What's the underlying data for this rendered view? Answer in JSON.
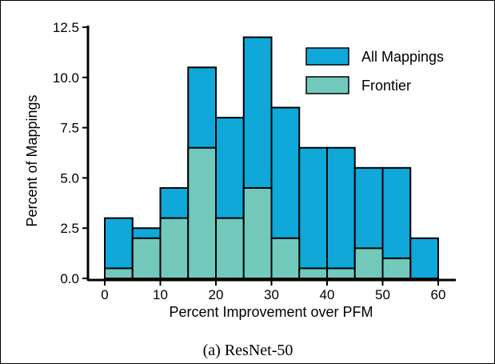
{
  "chart_data": {
    "type": "bar",
    "histogram": true,
    "bin_edges": [
      0,
      5,
      10,
      15,
      20,
      25,
      30,
      35,
      40,
      45,
      50,
      55,
      60
    ],
    "series": [
      {
        "name": "All Mappings",
        "color": "#0fa8d8",
        "values": [
          3.0,
          2.5,
          4.5,
          10.5,
          8.0,
          12.0,
          8.5,
          6.5,
          6.5,
          5.5,
          5.5,
          2.0
        ]
      },
      {
        "name": "Frontier",
        "color": "#72c9bb",
        "values": [
          0.5,
          2.0,
          3.0,
          6.5,
          3.0,
          4.5,
          2.0,
          0.5,
          0.5,
          1.5,
          1.0,
          0
        ]
      }
    ],
    "xlabel": "Percent Improvement over PFM",
    "ylabel": "Percent of Mappings",
    "xlim": [
      0,
      60
    ],
    "ylim": [
      0,
      12.5
    ],
    "x_ticks": [
      0,
      10,
      20,
      30,
      40,
      50,
      60
    ],
    "y_ticks": [
      "0.0",
      "2.5",
      "5.0",
      "7.5",
      "10.0",
      "12.5"
    ],
    "legend_position": "top-right",
    "grid": false
  },
  "caption": "(a) ResNet-50"
}
